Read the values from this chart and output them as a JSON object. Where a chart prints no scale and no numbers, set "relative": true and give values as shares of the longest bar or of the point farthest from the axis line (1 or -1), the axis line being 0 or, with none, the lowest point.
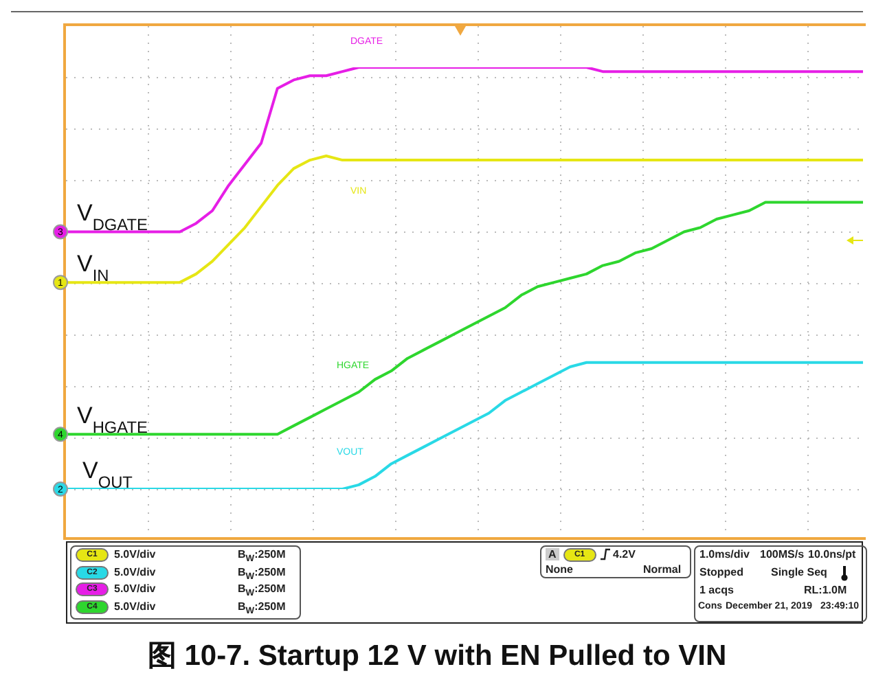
{
  "chart_data": {
    "type": "line",
    "title": "图 10-7. Startup 12 V with EN Pulled to VIN",
    "relative": true,
    "grid": true,
    "legend": "left",
    "categories": [
      null,
      null,
      null,
      null,
      null,
      null,
      null,
      null,
      null,
      null,
      null,
      null,
      null,
      null,
      null,
      null,
      null,
      null,
      null,
      null,
      null,
      null,
      null,
      null,
      null,
      null,
      null,
      null,
      null,
      null,
      null,
      null,
      null,
      null,
      null,
      null,
      null,
      null,
      null,
      null,
      null,
      null,
      null,
      null,
      null,
      null,
      null,
      null,
      null,
      null
    ],
    "series": [
      {
        "name": "V$_{DGATE}$",
        "color": "#e61ee6",
        "values": [
          0.61,
          0.61,
          0.61,
          0.61,
          0.61,
          0.61,
          0.61,
          0.61,
          0.63,
          0.66,
          0.72,
          0.77,
          0.82,
          0.95,
          0.97,
          0.98,
          0.98,
          0.99,
          1,
          1,
          1,
          1,
          1,
          1,
          1,
          1,
          1,
          1,
          1,
          1,
          1,
          1,
          1,
          0.99,
          0.99,
          0.99,
          0.99,
          0.99,
          0.99,
          0.99,
          0.99,
          0.99,
          0.99,
          0.99,
          0.99,
          0.99,
          0.99,
          0.99,
          0.99,
          0.99
        ]
      },
      {
        "name": "V$_{IN}$",
        "color": "#e6e614",
        "values": [
          0.49,
          0.49,
          0.49,
          0.49,
          0.49,
          0.49,
          0.49,
          0.49,
          0.51,
          0.54,
          0.58,
          0.62,
          0.67,
          0.72,
          0.76,
          0.78,
          0.79,
          0.78,
          0.78,
          0.78,
          0.78,
          0.78,
          0.78,
          0.78,
          0.78,
          0.78,
          0.78,
          0.78,
          0.78,
          0.78,
          0.78,
          0.78,
          0.78,
          0.78,
          0.78,
          0.78,
          0.78,
          0.78,
          0.78,
          0.78,
          0.78,
          0.78,
          0.78,
          0.78,
          0.78,
          0.78,
          0.78,
          0.78,
          0.78,
          0.78
        ]
      },
      {
        "name": "V$_{HGATE}$",
        "color": "#2ed62e",
        "values": [
          0.13,
          0.13,
          0.13,
          0.13,
          0.13,
          0.13,
          0.13,
          0.13,
          0.13,
          0.13,
          0.13,
          0.13,
          0.13,
          0.13,
          0.15,
          0.17,
          0.19,
          0.21,
          0.23,
          0.26,
          0.28,
          0.31,
          0.33,
          0.35,
          0.37,
          0.39,
          0.41,
          0.43,
          0.46,
          0.48,
          0.49,
          0.5,
          0.51,
          0.53,
          0.54,
          0.56,
          0.57,
          0.59,
          0.61,
          0.62,
          0.64,
          0.65,
          0.66,
          0.68,
          0.68,
          0.68,
          0.68,
          0.68,
          0.68,
          0.68
        ]
      },
      {
        "name": "V$_{OUT}$",
        "color": "#29d9e6",
        "values": [
          0,
          0,
          0,
          0,
          0,
          0,
          0,
          0,
          0,
          0,
          0,
          0,
          0,
          0,
          0,
          0,
          0,
          0,
          0.01,
          0.03,
          0.06,
          0.08,
          0.1,
          0.12,
          0.14,
          0.16,
          0.18,
          0.21,
          0.23,
          0.25,
          0.27,
          0.29,
          0.3,
          0.3,
          0.3,
          0.3,
          0.3,
          0.3,
          0.3,
          0.3,
          0.3,
          0.3,
          0.3,
          0.3,
          0.3,
          0.3,
          0.3,
          0.3,
          0.3,
          0.3
        ]
      }
    ],
    "annotations": [
      "DGATE",
      "VIN",
      "HGATE",
      "VOUT",
      "C1",
      "C2",
      "C3",
      "C4",
      "5.0V/div",
      "5.0V/div",
      "5.0V/div",
      "5.0V/div",
      "B$_{W}$:250M",
      "B$_{W}$:250M",
      "B$_{W}$:250M",
      "B$_{W}$:250M",
      "A",
      "C1",
      "4.2V",
      "None",
      "Normal",
      "1.0ms/div",
      "100MS/s",
      "10.0ns/pt",
      "Stopped",
      "Single Seq",
      "1 acqs",
      "RL:1.0M",
      "Cons",
      "December 21, 2019",
      "23:49:10",
      "3",
      "1",
      "4",
      "2"
    ]
  }
}
